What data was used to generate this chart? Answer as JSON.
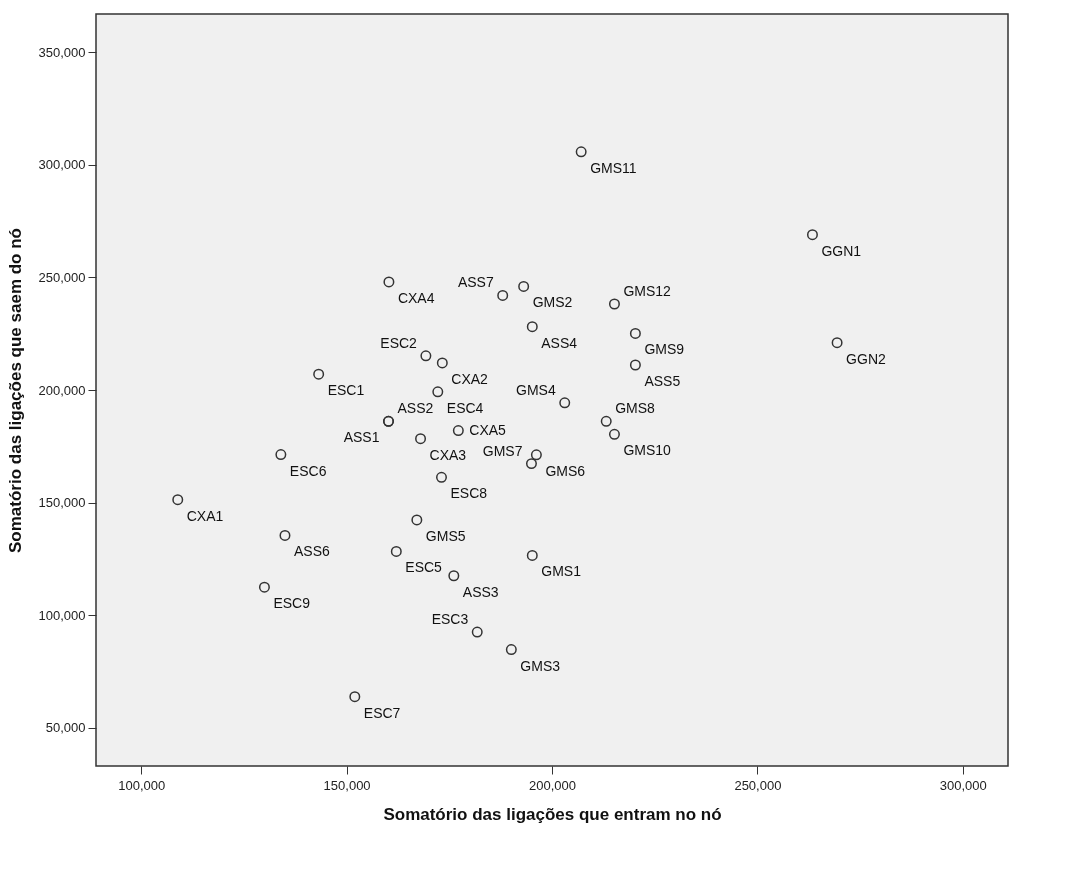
{
  "chart_data": {
    "type": "scatter",
    "xlabel": "Somatório das ligações que entram no nó",
    "ylabel": "Somatório das ligações que saem do nó",
    "xlim": [
      89000,
      311000
    ],
    "xticks": [
      {
        "value": 100000,
        "label": "100,000"
      },
      {
        "value": 150000,
        "label": "150,000"
      },
      {
        "value": 200000,
        "label": "200,000"
      },
      {
        "value": 250000,
        "label": "250,000"
      },
      {
        "value": 300000,
        "label": "300,000"
      }
    ],
    "ylim": [
      33000,
      367000
    ],
    "yticks": [
      {
        "value": 50000,
        "label": "50,000"
      },
      {
        "value": 100000,
        "label": "100,000"
      },
      {
        "value": 150000,
        "label": "150,000"
      },
      {
        "value": 200000,
        "label": "200,000"
      },
      {
        "value": 250000,
        "label": "250,000"
      },
      {
        "value": 300000,
        "label": "300,000"
      },
      {
        "value": 350000,
        "label": "350,000"
      }
    ],
    "marker": "circle",
    "series": [
      {
        "color": "#333333",
        "x": [
          207100,
          263400,
          269400,
          193100,
          188000,
          160300,
          215200,
          220300,
          169300,
          143200,
          195200,
          220300,
          172200,
          173300,
          203100,
          160200,
          160200,
          196200,
          213200,
          215200,
          168000,
          177200,
          195000,
          134000,
          108900,
          167100,
          173100,
          162100,
          135000,
          195200,
          130000,
          176100,
          181800,
          190100,
          152000
        ],
        "values": [
          305800,
          269000,
          221000,
          246000,
          242000,
          248000,
          238200,
          225100,
          215200,
          207000,
          228100,
          211100,
          199200,
          212000,
          194300,
          186100,
          186100,
          171200,
          186100,
          180300,
          178400,
          182000,
          167300,
          171300,
          151300,
          142300,
          161200,
          128300,
          135400,
          126500,
          112400,
          117500,
          92500,
          84700,
          63800
        ]
      }
    ],
    "annotations": [
      {
        "text": "GMS11",
        "x": 207100,
        "y": 305800
      },
      {
        "text": "GGN1",
        "x": 263400,
        "y": 269000
      },
      {
        "text": "GGN2",
        "x": 269400,
        "y": 221000
      },
      {
        "text": "GMS2",
        "x": 193100,
        "y": 246000
      },
      {
        "text": "ASS7",
        "x": 188000,
        "y": 242000
      },
      {
        "text": "CXA4",
        "x": 160300,
        "y": 248000
      },
      {
        "text": "GMS12",
        "x": 215200,
        "y": 238200
      },
      {
        "text": "GMS9",
        "x": 220300,
        "y": 225100
      },
      {
        "text": "ESC2",
        "x": 169300,
        "y": 215200
      },
      {
        "text": "ESC1",
        "x": 143200,
        "y": 207000
      },
      {
        "text": "ASS4",
        "x": 195200,
        "y": 228100
      },
      {
        "text": "ASS5",
        "x": 220300,
        "y": 211100
      },
      {
        "text": "ESC4",
        "x": 172200,
        "y": 199200
      },
      {
        "text": "CXA2",
        "x": 173300,
        "y": 212000
      },
      {
        "text": "GMS4",
        "x": 203100,
        "y": 194300
      },
      {
        "text": "ASS2",
        "x": 160200,
        "y": 186100
      },
      {
        "text": "ASS1",
        "x": 160200,
        "y": 186100
      },
      {
        "text": "GMS6",
        "x": 196200,
        "y": 171200
      },
      {
        "text": "GMS8",
        "x": 213200,
        "y": 186100
      },
      {
        "text": "GMS10",
        "x": 215200,
        "y": 180300
      },
      {
        "text": "CXA3",
        "x": 168000,
        "y": 178400
      },
      {
        "text": "CXA5",
        "x": 177200,
        "y": 182000
      },
      {
        "text": "GMS7",
        "x": 195000,
        "y": 167300
      },
      {
        "text": "ESC6",
        "x": 134000,
        "y": 171300
      },
      {
        "text": "CXA1",
        "x": 108900,
        "y": 151300
      },
      {
        "text": "GMS5",
        "x": 167100,
        "y": 142300
      },
      {
        "text": "ESC8",
        "x": 173100,
        "y": 161200
      },
      {
        "text": "ESC5",
        "x": 162100,
        "y": 128300
      },
      {
        "text": "ASS6",
        "x": 135000,
        "y": 135400
      },
      {
        "text": "GMS1",
        "x": 195200,
        "y": 126500
      },
      {
        "text": "ESC9",
        "x": 130000,
        "y": 112400
      },
      {
        "text": "ASS3",
        "x": 176100,
        "y": 117500
      },
      {
        "text": "ESC3",
        "x": 181800,
        "y": 92500
      },
      {
        "text": "GMS3",
        "x": 190100,
        "y": 84700
      },
      {
        "text": "ESC7",
        "x": 152000,
        "y": 63800
      }
    ]
  }
}
